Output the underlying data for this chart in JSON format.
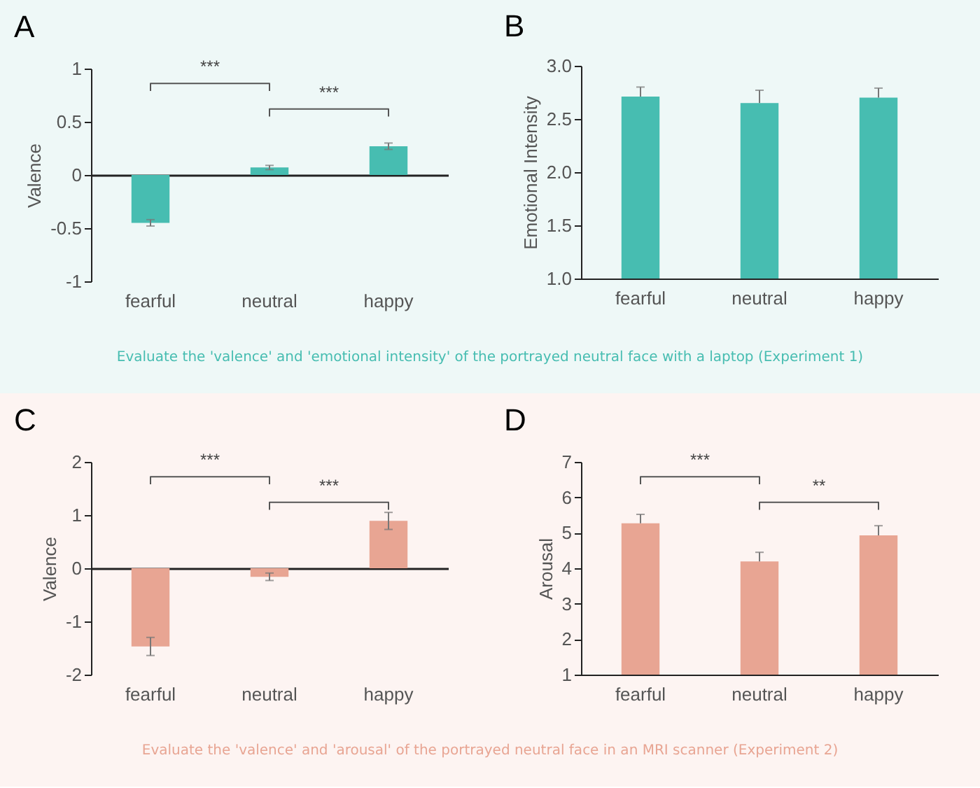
{
  "chart_data": [
    {
      "type": "bar",
      "title": "A",
      "ylabel": "Valence",
      "categories": [
        "fearful",
        "neutral",
        "happy"
      ],
      "values": [
        -0.45,
        0.07,
        0.27
      ],
      "errors": [
        0.03,
        0.02,
        0.03
      ],
      "color": "#47bdb1",
      "ylim": [
        -1,
        1
      ],
      "yticks": [
        -1,
        -0.5,
        0,
        0.5,
        1
      ],
      "annotations": [
        "***",
        "***",
        "Evaluate the 'valence' and 'emotional intensity' of the portrayed neutral face with a laptop (Experiment 1)"
      ]
    },
    {
      "type": "bar",
      "title": "B",
      "ylabel": "Emotional Intensity",
      "categories": [
        "fearful",
        "neutral",
        "happy"
      ],
      "values": [
        2.71,
        2.65,
        2.7
      ],
      "errors": [
        [
          2.71,
          2.8
        ],
        [
          2.65,
          2.77
        ],
        [
          2.7,
          2.79
        ]
      ],
      "color": "#47bdb1",
      "ylim": [
        1,
        3
      ],
      "yticks": [
        {
          "value": 1,
          "label": "1.0"
        },
        {
          "value": 1.5,
          "label": "1.5"
        },
        {
          "value": 2,
          "label": "2.0"
        },
        {
          "value": 2.5,
          "label": "2.5"
        },
        {
          "value": 3,
          "label": "3.0"
        }
      ]
    },
    {
      "type": "bar",
      "title": "C",
      "ylabel": "Valence",
      "categories": [
        "fearful",
        "neutral",
        "happy"
      ],
      "values": [
        -1.47,
        -0.16,
        0.89
      ],
      "errors": [
        0.17,
        0.07,
        0.16
      ],
      "color": "#e8a593",
      "ylim": [
        -2,
        2
      ],
      "yticks": [
        -2,
        -1,
        0,
        1,
        2
      ],
      "annotations": [
        "***",
        "***",
        "Evaluate the 'valence' and 'arousal' of the portrayed neutral face in an MRI scanner (Experiment 2)"
      ]
    },
    {
      "type": "bar",
      "title": "D",
      "ylabel": "Arousal",
      "categories": [
        "fearful",
        "neutral",
        "happy"
      ],
      "values": [
        5.27,
        4.19,
        4.93
      ],
      "errors": [
        [
          5.27,
          5.52
        ],
        [
          4.19,
          4.45
        ],
        [
          4.93,
          5.2
        ]
      ],
      "color": "#e8a593",
      "ylim": [
        1,
        7
      ],
      "yticks": [
        1,
        2,
        3,
        4,
        5,
        6,
        7
      ],
      "annotations": [
        "***",
        "**"
      ]
    }
  ]
}
